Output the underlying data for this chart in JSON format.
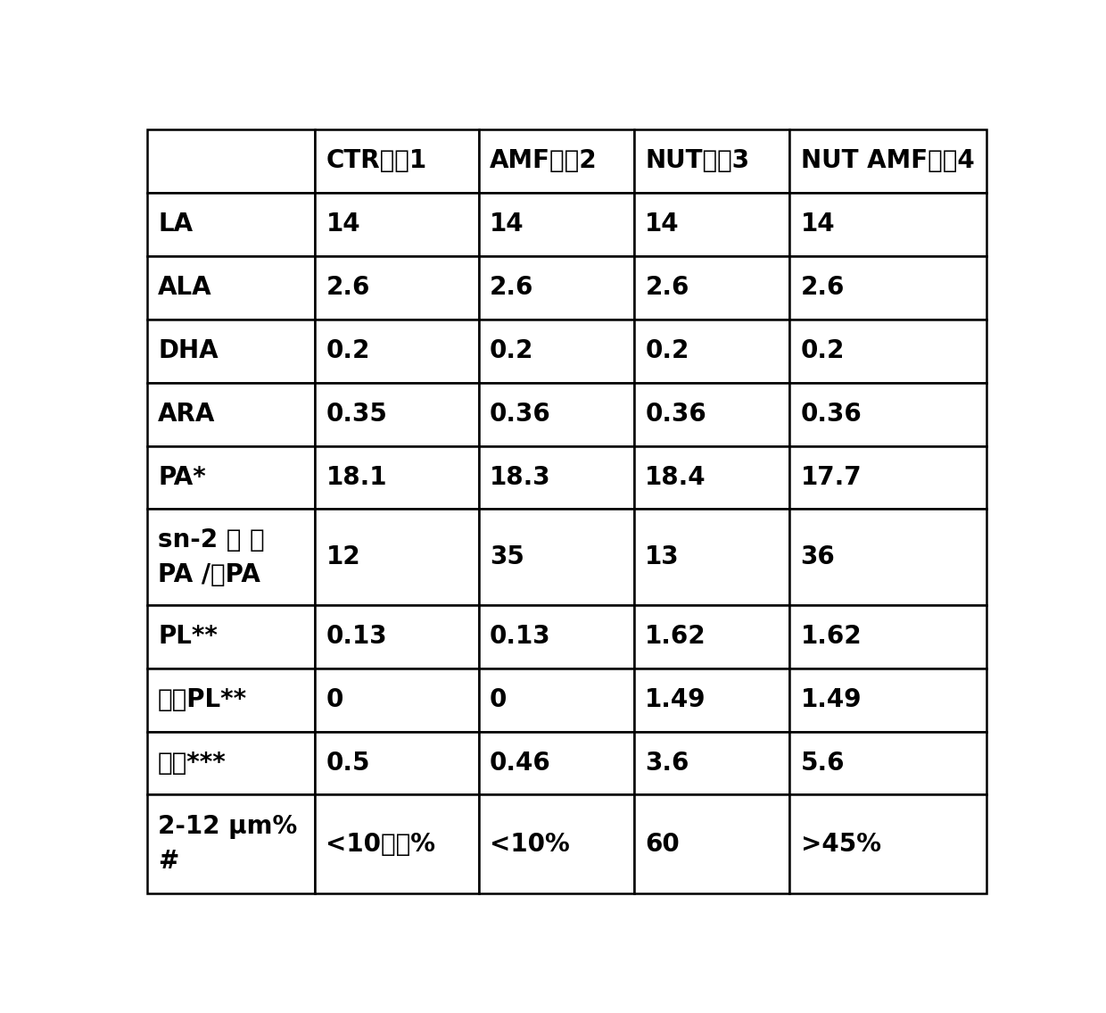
{
  "col_headers": [
    "CTR膳食1",
    "AMF膳食2",
    "NUT膳食3",
    "NUT AMF膳食4"
  ],
  "rows": [
    {
      "label": "LA",
      "values": [
        "14",
        "14",
        "14",
        "14"
      ],
      "multiline": false
    },
    {
      "label": "ALA",
      "values": [
        "2.6",
        "2.6",
        "2.6",
        "2.6"
      ],
      "multiline": false
    },
    {
      "label": "DHA",
      "values": [
        "0.2",
        "0.2",
        "0.2",
        "0.2"
      ],
      "multiline": false
    },
    {
      "label": "ARA",
      "values": [
        "0.35",
        "0.36",
        "0.36",
        "0.36"
      ],
      "multiline": false
    },
    {
      "label": "PA*",
      "values": [
        "18.1",
        "18.3",
        "18.4",
        "17.7"
      ],
      "multiline": false
    },
    {
      "label": "sn-2 上 的\nPA /总PA",
      "values": [
        "12",
        "35",
        "13",
        "36"
      ],
      "multiline": true
    },
    {
      "label": "PL**",
      "values": [
        "0.13",
        "0.13",
        "1.62",
        "1.62"
      ],
      "multiline": false
    },
    {
      "label": "乳源PL**",
      "values": [
        "0",
        "0",
        "1.49",
        "1.49"
      ],
      "multiline": false
    },
    {
      "label": "尺寸***",
      "values": [
        "0.5",
        "0.46",
        "3.6",
        "5.6"
      ],
      "multiline": false,
      "italic": true
    },
    {
      "label": "2-12 μm%\n#",
      "values": [
        "<10重量%",
        "<10%",
        "60",
        ">45%"
      ],
      "multiline": true
    }
  ],
  "bg_color": "#ffffff",
  "line_color": "#000000",
  "text_color": "#000000",
  "font_size_header": 20,
  "font_size_cell": 20,
  "font_size_row_label": 20
}
